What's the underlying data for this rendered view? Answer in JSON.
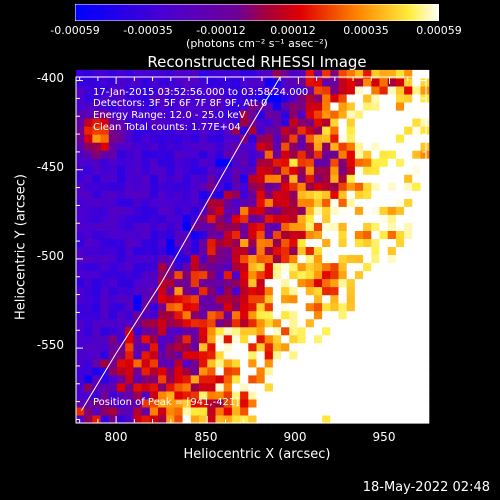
{
  "colorbar": {
    "ticks": [
      "-0.00059",
      "-0.00035",
      "-0.00012",
      "0.00012",
      "0.00035",
      "0.00059"
    ],
    "unit_label": "(photons cm⁻² s⁻¹ asec⁻²)"
  },
  "chart_data": {
    "type": "heatmap",
    "title": "Reconstructed RHESSI Image",
    "xlabel": "Heliocentric X (arcsec)",
    "ylabel": "Heliocentric Y (arcsec)",
    "xlim": [
      778,
      970
    ],
    "ylim": [
      -592,
      -398
    ],
    "xticks": [
      800,
      850,
      900,
      950
    ],
    "yticks": [
      -400,
      -450,
      -500,
      -550
    ],
    "color_range": [
      -0.00059,
      0.00059
    ],
    "annotations": {
      "time": "17-Jan-2015 03:52:56.000 to 03:58:24.000",
      "detectors": "Detectors: 3F 5F 6F 7F 8F 9F, Att 0",
      "energy": "Energy Range: 12.0 - 25.0 keV",
      "clean": "Clean   Total counts: 1.77E+04",
      "peak": "Position of Peak = [941,-421]"
    },
    "peak": [
      941,
      -421
    ],
    "limb_curve": [
      [
        781,
        -585
      ],
      [
        800,
        -553
      ],
      [
        825,
        -513
      ],
      [
        850,
        -468
      ],
      [
        870,
        -432
      ],
      [
        890,
        -398
      ]
    ]
  },
  "footer": {
    "timestamp": "18-May-2022 02:48"
  }
}
